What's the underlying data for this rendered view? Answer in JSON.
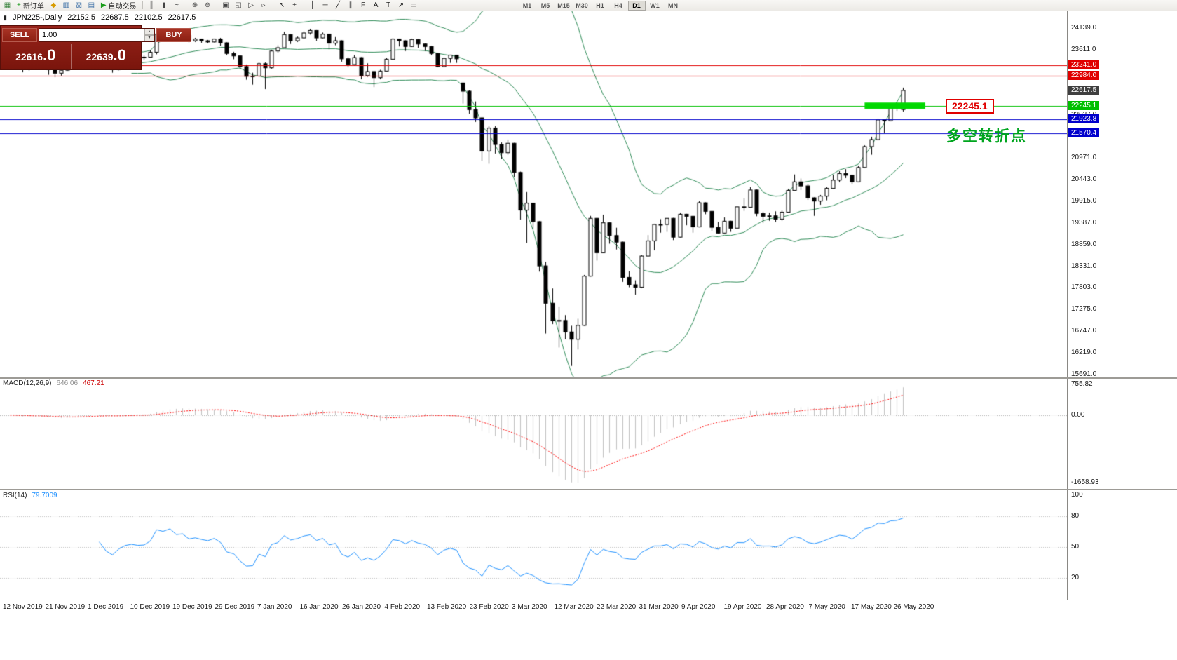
{
  "toolbar": {
    "items": [
      {
        "t": "icon",
        "name": "new-chart-icon",
        "g": "▦",
        "c": "#2e7d32"
      },
      {
        "t": "btn",
        "name": "new-order-button",
        "icon_name": "new-order-plus-icon",
        "g": "+",
        "gc": "#1a9c1a",
        "label": "新订单"
      },
      {
        "t": "icon",
        "name": "market-watch-icon",
        "g": "◆",
        "c": "#d79b00"
      },
      {
        "t": "icon",
        "name": "data-window-icon",
        "g": "▥",
        "c": "#3a6ea5"
      },
      {
        "t": "icon",
        "name": "navigator-icon",
        "g": "▧",
        "c": "#3a6ea5"
      },
      {
        "t": "icon",
        "name": "terminal-icon",
        "g": "▤",
        "c": "#3a6ea5"
      },
      {
        "t": "btn",
        "name": "auto-trading-button",
        "icon_name": "play-icon",
        "g": "▶",
        "gc": "#1a9c1a",
        "label": "自动交易"
      },
      {
        "t": "sep"
      },
      {
        "t": "icon",
        "name": "bar-chart-icon",
        "g": "║",
        "c": "#444444"
      },
      {
        "t": "icon",
        "name": "candlestick-chart-icon",
        "g": "▮",
        "c": "#444444"
      },
      {
        "t": "icon",
        "name": "line-chart-icon",
        "g": "~",
        "c": "#444444"
      },
      {
        "t": "sep"
      },
      {
        "t": "icon",
        "name": "zoom-in-icon",
        "g": "⊕",
        "c": "#444444"
      },
      {
        "t": "icon",
        "name": "zoom-out-icon",
        "g": "⊖",
        "c": "#444444"
      },
      {
        "t": "sep"
      },
      {
        "t": "icon",
        "name": "tile-windows-icon",
        "g": "▣",
        "c": "#444444"
      },
      {
        "t": "icon",
        "name": "cascade-windows-icon",
        "g": "◱",
        "c": "#444444"
      },
      {
        "t": "icon",
        "name": "auto-scroll-icon",
        "g": "▷",
        "c": "#444444"
      },
      {
        "t": "icon",
        "name": "chart-shift-icon",
        "g": "▹",
        "c": "#444444"
      },
      {
        "t": "sep"
      },
      {
        "t": "icon",
        "name": "cursor-icon",
        "g": "↖",
        "c": "#222222"
      },
      {
        "t": "icon",
        "name": "crosshair-icon",
        "g": "+",
        "c": "#222222"
      },
      {
        "t": "sep"
      },
      {
        "t": "icon",
        "name": "vertical-line-icon",
        "g": "│",
        "c": "#222222"
      },
      {
        "t": "icon",
        "name": "horizontal-line-icon",
        "g": "─",
        "c": "#222222"
      },
      {
        "t": "icon",
        "name": "trendline-icon",
        "g": "╱",
        "c": "#222222"
      },
      {
        "t": "icon",
        "name": "equidistant-channel-icon",
        "g": "∥",
        "c": "#222222"
      },
      {
        "t": "icon",
        "name": "fibonacci-icon",
        "g": "F",
        "c": "#222222"
      },
      {
        "t": "icon",
        "name": "text-icon",
        "g": "A",
        "c": "#222222"
      },
      {
        "t": "icon",
        "name": "text-label-icon",
        "g": "T",
        "c": "#222222"
      },
      {
        "t": "icon",
        "name": "arrow-tool-icon",
        "g": "↗",
        "c": "#222222"
      },
      {
        "t": "icon",
        "name": "shapes-icon",
        "g": "▭",
        "c": "#222222"
      }
    ],
    "timeframes": [
      "M1",
      "M5",
      "M15",
      "M30",
      "H1",
      "H4",
      "D1",
      "W1",
      "MN"
    ],
    "active_timeframe": "D1"
  },
  "symbol_header": {
    "symbol": "JPN225-,Daily",
    "open": "22152.5",
    "high": "22687.5",
    "low": "22102.5",
    "close": "22617.5"
  },
  "trade_panel": {
    "sell_label": "SELL",
    "buy_label": "BUY",
    "volume": "1.00",
    "sell_price": "22616.0",
    "buy_price": "22639.0",
    "sell_price_main": "22616",
    "sell_price_frac": ".0",
    "buy_price_main": "22639",
    "buy_price_frac": ".0"
  },
  "price_scale_labels": [
    "24139.0",
    "23611.0",
    "22027.0",
    "20971.0",
    "20443.0",
    "19915.0",
    "19387.0",
    "18859.0",
    "18331.0",
    "17803.0",
    "17275.0",
    "16747.0",
    "16219.0",
    "15691.0"
  ],
  "price_tags": [
    {
      "text": "23241.0",
      "value": 23241.0,
      "color": "#e00000"
    },
    {
      "text": "22984.0",
      "value": 22984.0,
      "color": "#e00000"
    },
    {
      "text": "22617.5",
      "value": 22617.5,
      "color": "#3f3f3f"
    },
    {
      "text": "22245.1",
      "value": 22245.1,
      "color": "#00c000"
    },
    {
      "text": "21923.8",
      "value": 21923.8,
      "color": "#0000cc"
    },
    {
      "text": "21570.4",
      "value": 21570.4,
      "color": "#0000cc"
    }
  ],
  "annotations": {
    "breakout_label": "22245.1",
    "turning_point_label": "多空转折点"
  },
  "macd_panel": {
    "label": "MACD(12,26,9)",
    "main_value": "646.06",
    "signal_value": "467.21",
    "scale_labels": [
      "755.82",
      "0.00",
      "-1658.93"
    ]
  },
  "rsi_panel": {
    "label": "RSI(14)",
    "value": "79.7009",
    "scale_labels": [
      "100",
      "80",
      "50",
      "20"
    ],
    "levels": [
      80,
      50,
      20
    ]
  },
  "chart_data": {
    "type": "candlestick",
    "symbol": "JPN225",
    "timeframe": "Daily",
    "ylim": [
      15622,
      24550
    ],
    "x_labels": [
      "12 Nov 2019",
      "21 Nov 2019",
      "1 Dec 2019",
      "10 Dec 2019",
      "19 Dec 2019",
      "29 Dec 2019",
      "7 Jan 2020",
      "16 Jan 2020",
      "26 Jan 2020",
      "4 Feb 2020",
      "13 Feb 2020",
      "23 Feb 2020",
      "3 Mar 2020",
      "12 Mar 2020",
      "22 Mar 2020",
      "31 Mar 2020",
      "9 Apr 2020",
      "19 Apr 2020",
      "28 Apr 2020",
      "7 May 2020",
      "17 May 2020",
      "26 May 2020"
    ],
    "hlines": [
      {
        "value": 23241.0,
        "color": "#e00000",
        "style": "solid"
      },
      {
        "value": 22984.0,
        "color": "#e00000",
        "style": "solid"
      },
      {
        "value": 22245.1,
        "color": "#00c000",
        "style": "solid"
      },
      {
        "value": 21923.8,
        "color": "#0000cc",
        "style": "solid"
      },
      {
        "value": 21570.4,
        "color": "#0000cc",
        "style": "solid"
      }
    ],
    "highlight_bar": {
      "value": 22245.1,
      "start_bar": 134,
      "end_bar": 143.5,
      "color": "#00d800",
      "thickness": 9
    },
    "indicators": {
      "bollinger": {
        "period": 20,
        "deviation": 2,
        "color": "#2e8b57"
      },
      "macd": {
        "fast": 12,
        "slow": 26,
        "signal": 9,
        "main_color": "#c0c0c0",
        "signal_color": "#ff0000"
      },
      "rsi": {
        "period": 14,
        "color": "#1e90ff"
      }
    },
    "candles": [
      [
        23320,
        23420,
        23270,
        23380
      ],
      [
        23380,
        23400,
        23210,
        23270
      ],
      [
        23270,
        23300,
        23060,
        23140
      ],
      [
        23140,
        23340,
        23100,
        23300
      ],
      [
        23300,
        23360,
        23200,
        23250
      ],
      [
        23250,
        23350,
        23200,
        23290
      ],
      [
        23290,
        23300,
        23000,
        23130
      ],
      [
        23130,
        23160,
        22940,
        23040
      ],
      [
        23040,
        23150,
        22980,
        23110
      ],
      [
        23110,
        23300,
        23100,
        23290
      ],
      [
        23290,
        23380,
        23250,
        23370
      ],
      [
        23370,
        23450,
        23300,
        23430
      ],
      [
        23430,
        23440,
        23320,
        23410
      ],
      [
        23410,
        23430,
        23250,
        23290
      ],
      [
        23290,
        23550,
        23280,
        23530
      ],
      [
        23530,
        23540,
        23200,
        23260
      ],
      [
        23260,
        23300,
        23050,
        23130
      ],
      [
        23130,
        23340,
        23110,
        23300
      ],
      [
        23300,
        23430,
        23250,
        23410
      ],
      [
        23410,
        23480,
        23390,
        23450
      ],
      [
        23450,
        23460,
        23350,
        23420
      ],
      [
        23420,
        23470,
        23360,
        23430
      ],
      [
        23430,
        23600,
        23420,
        23550
      ],
      [
        23550,
        24050,
        23500,
        23990
      ],
      [
        23990,
        24000,
        23850,
        23950
      ],
      [
        23950,
        24090,
        23930,
        24070
      ],
      [
        24070,
        24080,
        23890,
        23930
      ],
      [
        23930,
        23990,
        23870,
        23960
      ],
      [
        23960,
        24010,
        23790,
        23830
      ],
      [
        23830,
        23900,
        23800,
        23870
      ],
      [
        23870,
        23880,
        23780,
        23830
      ],
      [
        23830,
        23850,
        23770,
        23800
      ],
      [
        23800,
        23880,
        23790,
        23870
      ],
      [
        23870,
        23900,
        23710,
        23780
      ],
      [
        23780,
        23790,
        23480,
        23520
      ],
      [
        23520,
        23560,
        23380,
        23460
      ],
      [
        23460,
        23480,
        23130,
        23200
      ],
      [
        23200,
        23250,
        22880,
        22960
      ],
      [
        22960,
        23050,
        22760,
        22970
      ],
      [
        22970,
        23300,
        22950,
        23270
      ],
      [
        23270,
        23300,
        22650,
        23170
      ],
      [
        23170,
        23610,
        23150,
        23580
      ],
      [
        23580,
        23720,
        23540,
        23660
      ],
      [
        23660,
        24050,
        23650,
        23980
      ],
      [
        23980,
        23990,
        23750,
        23830
      ],
      [
        23830,
        23930,
        23800,
        23900
      ],
      [
        23900,
        24060,
        23880,
        24020
      ],
      [
        24020,
        24120,
        23980,
        24080
      ],
      [
        24080,
        24090,
        23830,
        23900
      ],
      [
        23900,
        24030,
        23890,
        23990
      ],
      [
        23990,
        24000,
        23620,
        23770
      ],
      [
        23770,
        23920,
        23720,
        23830
      ],
      [
        23830,
        23840,
        23320,
        23390
      ],
      [
        23390,
        23430,
        23180,
        23250
      ],
      [
        23250,
        23480,
        23240,
        23420
      ],
      [
        23420,
        23430,
        22890,
        22980
      ],
      [
        22980,
        23280,
        22950,
        23080
      ],
      [
        23080,
        23090,
        22700,
        22930
      ],
      [
        22930,
        23120,
        22890,
        23090
      ],
      [
        23090,
        23410,
        23080,
        23380
      ],
      [
        23380,
        23890,
        23370,
        23870
      ],
      [
        23870,
        23880,
        23690,
        23830
      ],
      [
        23830,
        23840,
        23580,
        23690
      ],
      [
        23690,
        23880,
        23680,
        23860
      ],
      [
        23860,
        23870,
        23660,
        23750
      ],
      [
        23750,
        23760,
        23580,
        23690
      ],
      [
        23690,
        23700,
        23480,
        23520
      ],
      [
        23520,
        23530,
        23190,
        23200
      ],
      [
        23200,
        23420,
        23190,
        23400
      ],
      [
        23400,
        23490,
        23290,
        23480
      ],
      [
        23480,
        23490,
        23290,
        23390
      ],
      [
        22800,
        22810,
        22300,
        22600
      ],
      [
        22600,
        22620,
        22050,
        22150
      ],
      [
        22150,
        22350,
        21850,
        21950
      ],
      [
        21950,
        21960,
        20900,
        21140
      ],
      [
        21140,
        21750,
        20830,
        21700
      ],
      [
        21700,
        21750,
        21080,
        21300
      ],
      [
        21300,
        21350,
        20950,
        21100
      ],
      [
        21100,
        21420,
        21050,
        21330
      ],
      [
        21330,
        21340,
        20510,
        20620
      ],
      [
        20620,
        20640,
        19470,
        19700
      ],
      [
        19700,
        20140,
        18900,
        19870
      ],
      [
        19870,
        19880,
        19250,
        19420
      ],
      [
        19420,
        19430,
        18200,
        18340
      ],
      [
        18340,
        18440,
        16690,
        17430
      ],
      [
        17430,
        17790,
        16920,
        17000
      ],
      [
        17000,
        17350,
        16350,
        17010
      ],
      [
        17010,
        17140,
        16550,
        16730
      ],
      [
        16730,
        16880,
        15900,
        16550
      ],
      [
        16550,
        17050,
        16300,
        16890
      ],
      [
        16890,
        18120,
        16880,
        18090
      ],
      [
        18090,
        19560,
        18080,
        19500
      ],
      [
        19500,
        19510,
        18470,
        18660
      ],
      [
        18660,
        19590,
        18650,
        19390
      ],
      [
        19390,
        19400,
        18880,
        19080
      ],
      [
        19080,
        19270,
        18740,
        18920
      ],
      [
        18920,
        18930,
        17950,
        18060
      ],
      [
        18060,
        18210,
        17820,
        17880
      ],
      [
        17880,
        17990,
        17640,
        17820
      ],
      [
        17820,
        18600,
        17800,
        18580
      ],
      [
        18580,
        19090,
        18570,
        18950
      ],
      [
        18950,
        19360,
        18720,
        19350
      ],
      [
        19350,
        19480,
        19150,
        19350
      ],
      [
        19350,
        19500,
        19170,
        19500
      ],
      [
        19500,
        19510,
        18970,
        19040
      ],
      [
        19040,
        19640,
        19030,
        19600
      ],
      [
        19600,
        19610,
        19330,
        19550
      ],
      [
        19550,
        19560,
        19150,
        19290
      ],
      [
        19290,
        19920,
        19280,
        19880
      ],
      [
        19880,
        19890,
        19600,
        19670
      ],
      [
        19670,
        19680,
        19190,
        19280
      ],
      [
        19280,
        19410,
        19130,
        19140
      ],
      [
        19140,
        19520,
        19130,
        19430
      ],
      [
        19430,
        19440,
        19170,
        19260
      ],
      [
        19260,
        19790,
        19250,
        19780
      ],
      [
        19780,
        19990,
        19680,
        19770
      ],
      [
        19770,
        20260,
        19760,
        20190
      ],
      [
        20190,
        20200,
        19550,
        19620
      ],
      [
        19620,
        19660,
        19390,
        19550
      ],
      [
        19550,
        19640,
        19440,
        19560
      ],
      [
        19560,
        19670,
        19410,
        19480
      ],
      [
        19480,
        19690,
        19440,
        19650
      ],
      [
        19650,
        20220,
        19640,
        20180
      ],
      [
        20180,
        20570,
        20170,
        20390
      ],
      [
        20390,
        20470,
        20190,
        20290
      ],
      [
        20290,
        20330,
        19950,
        20000
      ],
      [
        20000,
        20010,
        19560,
        19920
      ],
      [
        19920,
        20070,
        19830,
        20040
      ],
      [
        20040,
        20260,
        19940,
        20230
      ],
      [
        20230,
        20560,
        20220,
        20430
      ],
      [
        20430,
        20650,
        20380,
        20590
      ],
      [
        20590,
        20700,
        20480,
        20550
      ],
      [
        20550,
        20560,
        20330,
        20390
      ],
      [
        20390,
        20780,
        20380,
        20740
      ],
      [
        20740,
        21280,
        20730,
        21250
      ],
      [
        21250,
        21490,
        21050,
        21420
      ],
      [
        21420,
        21930,
        21410,
        21900
      ],
      [
        21900,
        21910,
        21580,
        21880
      ],
      [
        21880,
        22260,
        21870,
        22230
      ],
      [
        22230,
        22330,
        22120,
        22280
      ],
      [
        22152.5,
        22687.5,
        22102.5,
        22617.5
      ]
    ]
  }
}
